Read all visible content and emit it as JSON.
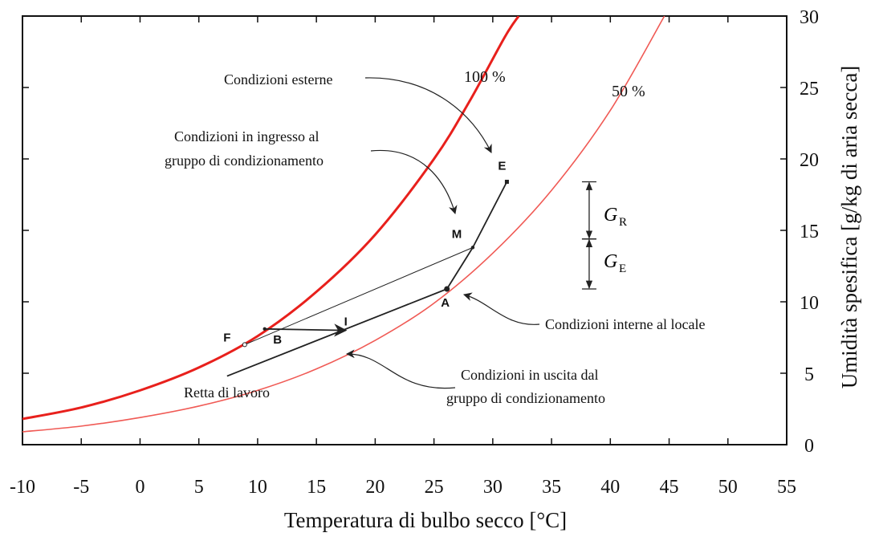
{
  "chart_data": {
    "type": "line",
    "xlabel": "Temperatura di bulbo secco [°C]",
    "ylabel": "Umidità spesifica [g/kg di aria secca]",
    "xlim": [
      -10,
      55
    ],
    "ylim": [
      0,
      30
    ],
    "xticks": [
      "-10",
      "-5",
      "0",
      "5",
      "10",
      "15",
      "20",
      "25",
      "30",
      "35",
      "40",
      "45",
      "50",
      "55"
    ],
    "yticks": [
      "0",
      "5",
      "10",
      "15",
      "20",
      "25",
      "30"
    ],
    "grid": false,
    "series": [
      {
        "name": "100 %",
        "color": "#e8201c",
        "points": [
          [
            -10,
            1.8
          ],
          [
            -5,
            2.6
          ],
          [
            0,
            3.8
          ],
          [
            5,
            5.4
          ],
          [
            10,
            7.6
          ],
          [
            15,
            10.7
          ],
          [
            20,
            14.7
          ],
          [
            25,
            20.0
          ],
          [
            28,
            24.0
          ],
          [
            31,
            28.5
          ],
          [
            32.2,
            30.0
          ]
        ]
      },
      {
        "name": "50 %",
        "color": "#f05a55",
        "points": [
          [
            -10,
            0.9
          ],
          [
            -5,
            1.3
          ],
          [
            0,
            1.9
          ],
          [
            5,
            2.7
          ],
          [
            10,
            3.8
          ],
          [
            15,
            5.3
          ],
          [
            20,
            7.3
          ],
          [
            25,
            9.9
          ],
          [
            30,
            13.4
          ],
          [
            35,
            17.8
          ],
          [
            40,
            23.4
          ],
          [
            44.6,
            30.0
          ]
        ]
      }
    ],
    "points": [
      {
        "label": "E",
        "x": 31.2,
        "y": 18.4
      },
      {
        "label": "M",
        "x": 28.3,
        "y": 13.8
      },
      {
        "label": "A",
        "x": 26.1,
        "y": 10.9
      },
      {
        "label": "I",
        "x": 17.5,
        "y": 8.0
      },
      {
        "label": "B",
        "x": 10.6,
        "y": 8.1
      },
      {
        "label": "F",
        "x": 8.9,
        "y": 7.0
      }
    ],
    "lines": [
      {
        "from": "E",
        "to": "M"
      },
      {
        "from": "M",
        "to": "A"
      },
      {
        "from": "M",
        "to": "F"
      },
      {
        "from": "B",
        "to": "I",
        "arrow": true
      },
      {
        "name": "Retta di lavoro",
        "from_xy": [
          7.4,
          4.8
        ],
        "to": "A"
      }
    ],
    "annotations": [
      "Condizioni esterne",
      "Condizioni in ingresso al gruppo di condizionamento",
      "Condizioni interne al locale",
      "Condizioni in uscita dal gruppo di condizionamento",
      "Retta di lavoro"
    ],
    "brackets": [
      {
        "label": "G",
        "sub": "R",
        "x": 38.2,
        "y_from": 18.4,
        "y_to": 14.4
      },
      {
        "label": "G",
        "sub": "E",
        "x": 38.2,
        "y_from": 14.4,
        "y_to": 10.9
      }
    ]
  },
  "text": {
    "ann_esterne": "Condizioni esterne",
    "ann_ingresso_1": "Condizioni in ingresso al",
    "ann_ingresso_2": "gruppo di condizionamento",
    "ann_interne": "Condizioni interne al locale",
    "ann_uscita_1": "Condizioni in uscita dal",
    "ann_uscita_2": "gruppo di condizionamento",
    "ann_retta": "Retta di lavoro",
    "label_100": "100 %",
    "label_50": "50 %",
    "g_r_main": "G",
    "g_r_sub": "R",
    "g_e_main": "G",
    "g_e_sub": "E"
  }
}
